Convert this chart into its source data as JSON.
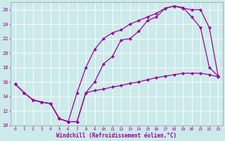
{
  "background_color": "#cceaea",
  "grid_color": "#b0d8d8",
  "line_color": "#990099",
  "marker": "D",
  "markersize": 2.2,
  "linewidth": 0.9,
  "xlim": [
    -0.5,
    23.5
  ],
  "ylim": [
    10,
    27
  ],
  "xlabel": "Windchill (Refroidissement éolien,°C)",
  "xlabel_fontsize": 5.5,
  "xtick_fontsize": 4.5,
  "ytick_fontsize": 5.0,
  "xticks": [
    0,
    1,
    2,
    3,
    4,
    5,
    6,
    7,
    8,
    9,
    10,
    11,
    12,
    13,
    14,
    15,
    16,
    17,
    18,
    19,
    20,
    21,
    22,
    23
  ],
  "yticks": [
    10,
    12,
    14,
    16,
    18,
    20,
    22,
    24,
    26
  ],
  "line1_x": [
    0,
    1,
    2,
    3,
    4,
    5,
    6,
    7,
    8,
    9,
    10,
    11,
    12,
    13,
    14,
    15,
    16,
    17,
    18,
    19,
    20,
    21,
    22,
    23
  ],
  "line1_y": [
    15.7,
    14.5,
    13.5,
    13.2,
    13.0,
    10.9,
    10.5,
    10.5,
    14.5,
    14.8,
    15.0,
    15.3,
    15.5,
    15.8,
    16.0,
    16.3,
    16.6,
    16.8,
    17.0,
    17.2,
    17.2,
    17.2,
    17.0,
    16.7
  ],
  "line2_x": [
    0,
    1,
    2,
    3,
    4,
    5,
    6,
    7,
    8,
    9,
    10,
    11,
    12,
    13,
    14,
    15,
    16,
    17,
    18,
    19,
    20,
    21,
    22,
    23
  ],
  "line2_y": [
    15.7,
    14.5,
    13.5,
    13.2,
    13.0,
    10.9,
    10.5,
    10.5,
    14.5,
    16.0,
    18.5,
    19.5,
    21.8,
    22.0,
    23.0,
    24.5,
    25.0,
    26.2,
    26.5,
    26.3,
    25.0,
    23.5,
    18.0,
    16.8
  ],
  "line3_x": [
    0,
    1,
    2,
    3,
    4,
    5,
    6,
    7,
    8,
    9,
    10,
    11,
    12,
    13,
    14,
    15,
    16,
    17,
    18,
    19,
    20,
    21,
    22,
    23
  ],
  "line3_y": [
    15.7,
    14.5,
    13.5,
    13.2,
    13.0,
    10.9,
    10.5,
    14.5,
    18.0,
    20.5,
    22.0,
    22.8,
    23.2,
    24.0,
    24.5,
    25.0,
    25.5,
    26.2,
    26.5,
    26.2,
    26.0,
    26.0,
    23.5,
    16.8
  ]
}
